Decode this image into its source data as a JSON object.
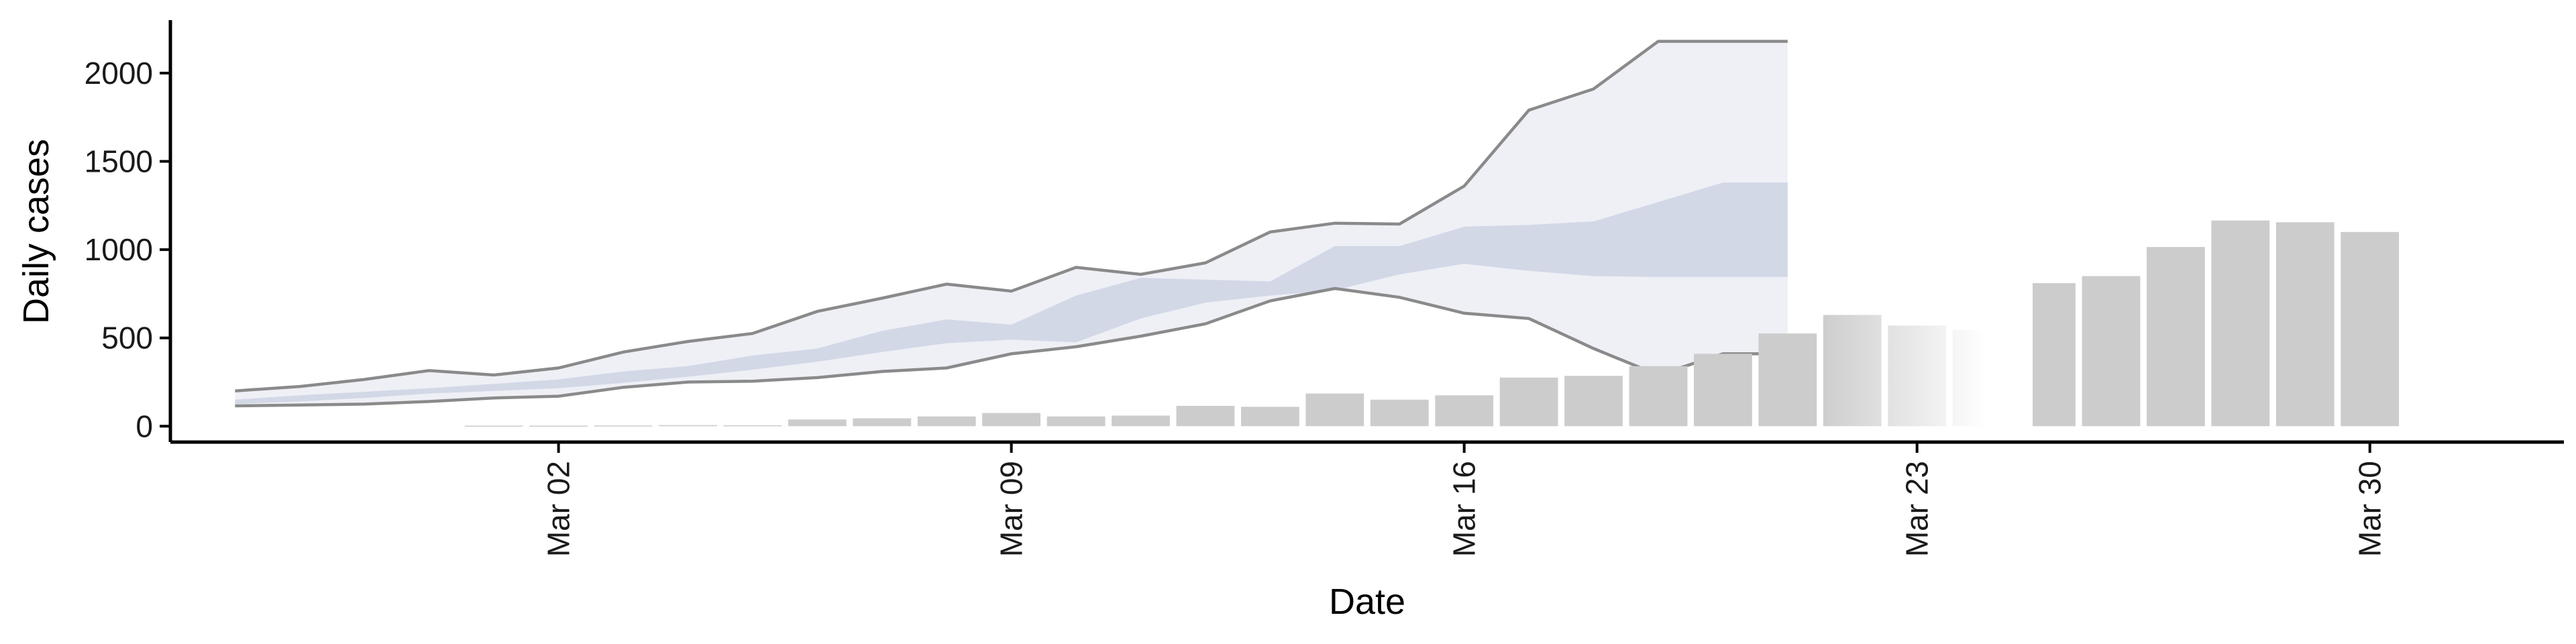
{
  "chart_data": {
    "type": "bar",
    "xlabel": "Date",
    "ylabel": "Daily cases",
    "ylim": [
      -90,
      2300
    ],
    "y_ticks": [
      0,
      500,
      1000,
      1500,
      2000
    ],
    "y_tick_labels": [
      "0",
      "500",
      "1000",
      "1500",
      "2000"
    ],
    "x_ticks": [
      "2020-03-02",
      "2020-03-09",
      "2020-03-16",
      "2020-03-23",
      "2020-03-30"
    ],
    "x_tick_labels": [
      "Mar 02",
      "Mar 09",
      "Mar 16",
      "Mar 23",
      "Mar 30"
    ],
    "xlim": [
      "2020-02-25",
      "2020-04-02"
    ],
    "grid": false,
    "colors": {
      "bars": "#cccccc",
      "band_outer": "#eef0f6",
      "band_inner": "#d3d8e7",
      "band_line": "#8a8a8a",
      "axis": "#000000"
    },
    "bars": {
      "dates": [
        "2020-03-01",
        "2020-03-02",
        "2020-03-03",
        "2020-03-04",
        "2020-03-05",
        "2020-03-06",
        "2020-03-07",
        "2020-03-08",
        "2020-03-09",
        "2020-03-10",
        "2020-03-11",
        "2020-03-12",
        "2020-03-13",
        "2020-03-14",
        "2020-03-15",
        "2020-03-16",
        "2020-03-17",
        "2020-03-18",
        "2020-03-19",
        "2020-03-20",
        "2020-03-21",
        "2020-03-22",
        "2020-03-23",
        "2020-03-24",
        "2020-03-25",
        "2020-03-26",
        "2020-03-27",
        "2020-03-28",
        "2020-03-29",
        "2020-03-30"
      ],
      "values": [
        3,
        3,
        4,
        6,
        5,
        38,
        45,
        55,
        75,
        55,
        60,
        115,
        110,
        185,
        150,
        175,
        275,
        285,
        340,
        410,
        525,
        630,
        570,
        545,
        810,
        850,
        1015,
        1165,
        1155,
        1100
      ]
    },
    "band": {
      "dates": [
        "2020-02-26",
        "2020-02-27",
        "2020-02-28",
        "2020-02-29",
        "2020-03-01",
        "2020-03-02",
        "2020-03-03",
        "2020-03-04",
        "2020-03-05",
        "2020-03-06",
        "2020-03-07",
        "2020-03-08",
        "2020-03-09",
        "2020-03-10",
        "2020-03-11",
        "2020-03-12",
        "2020-03-13",
        "2020-03-14",
        "2020-03-15",
        "2020-03-16",
        "2020-03-17",
        "2020-03-18",
        "2020-03-19",
        "2020-03-20",
        "2020-03-21"
      ],
      "lower90": [
        115,
        120,
        125,
        140,
        160,
        170,
        220,
        250,
        255,
        275,
        310,
        330,
        410,
        450,
        510,
        580,
        710,
        780,
        730,
        640,
        610,
        440,
        290,
        410,
        410
      ],
      "upper90": [
        200,
        225,
        265,
        315,
        290,
        330,
        420,
        480,
        525,
        650,
        725,
        805,
        765,
        900,
        860,
        925,
        1100,
        1150,
        1145,
        1360,
        1790,
        1910,
        2180,
        2180,
        2180
      ],
      "lower50": [
        125,
        140,
        160,
        185,
        200,
        215,
        245,
        280,
        320,
        365,
        420,
        470,
        490,
        475,
        610,
        700,
        740,
        770,
        860,
        920,
        880,
        850,
        845,
        845,
        845
      ],
      "upper50": [
        150,
        175,
        195,
        215,
        240,
        265,
        310,
        340,
        400,
        440,
        540,
        605,
        575,
        740,
        840,
        830,
        820,
        1020,
        1020,
        1130,
        1140,
        1160,
        1270,
        1380,
        1380
      ],
      "line_end_date": "2020-03-21"
    }
  }
}
